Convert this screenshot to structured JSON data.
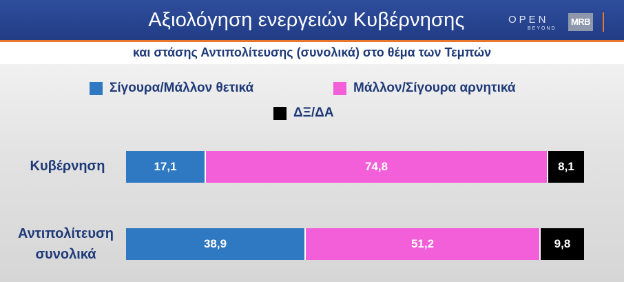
{
  "header": {
    "title": "Αξιολόγηση ενεργειών Κυβέρνησης",
    "subtitle": "και στάσης Αντιπολίτευσης (συνολικά) στο θέμα των Τεμπών",
    "logo_open": "OPEN",
    "logo_beyond": "BEYOND",
    "logo_mrb": "MRB"
  },
  "colors": {
    "positive": "#2f78c2",
    "negative": "#f25fd8",
    "dk": "#000000",
    "header_bg": "#223d86",
    "accent": "#e8762c"
  },
  "chart_data": {
    "type": "bar",
    "orientation": "horizontal",
    "stacked": true,
    "percent_total": true,
    "categories": [
      "Κυβέρνηση",
      "Αντιπολίτευση συνολικά"
    ],
    "series": [
      {
        "name": "Σίγουρα/Μάλλον θετικά",
        "values": [
          17.1,
          38.9
        ],
        "labels": [
          "17,1",
          "38,9"
        ],
        "color": "#2f78c2"
      },
      {
        "name": "Μάλλον/Σίγουρα αρνητικά",
        "values": [
          74.8,
          51.2
        ],
        "labels": [
          "74,8",
          "51,2"
        ],
        "color": "#f25fd8"
      },
      {
        "name": "ΔΞ/ΔΑ",
        "values": [
          8.1,
          9.8
        ],
        "labels": [
          "8,1",
          "9,8"
        ],
        "color": "#000000"
      }
    ],
    "legend_position": "top",
    "grid": false
  }
}
